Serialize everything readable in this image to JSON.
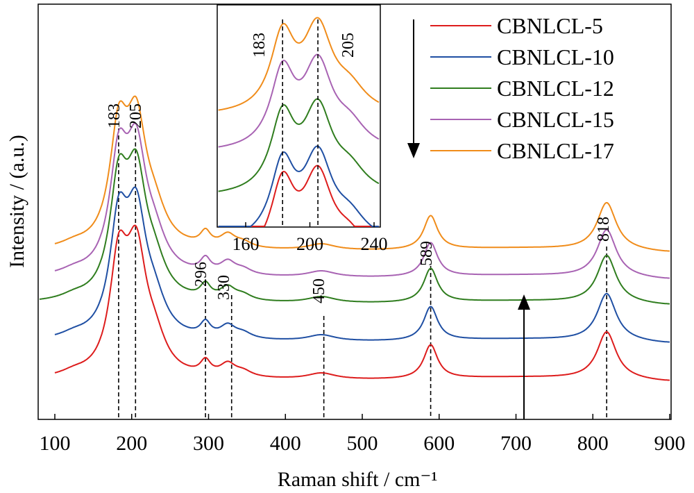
{
  "chart_data": {
    "type": "line",
    "xlabel": "Raman shift / cm⁻¹",
    "ylabel": "Intensity / (a.u.)",
    "xlim": [
      80,
      900
    ],
    "xticks": [
      "100",
      "200",
      "300",
      "400",
      "500",
      "600",
      "700",
      "800",
      "900"
    ],
    "y_ticks_shown": false,
    "legend_position": "top-right",
    "series": [
      {
        "name": "CBNLCL-5",
        "color": "#dd1c1c",
        "offset": 0,
        "scale": 1.0
      },
      {
        "name": "CBNLCL-10",
        "color": "#1f4fa3",
        "offset": 0.1,
        "scale": 1.0
      },
      {
        "name": "CBNLCL-12",
        "color": "#2f7d1e",
        "offset": 0.2,
        "scale": 1.0
      },
      {
        "name": "CBNLCL-15",
        "color": "#a863b3",
        "offset": 0.25,
        "scale": 1.0
      },
      {
        "name": "CBNLCL-17",
        "color": "#f08c1a",
        "offset": 0.31,
        "scale": 1.0
      }
    ],
    "peaks": [
      {
        "position": 183,
        "label": "183"
      },
      {
        "position": 205,
        "label": "205"
      },
      {
        "position": 296,
        "label": "296"
      },
      {
        "position": 330,
        "label": "330"
      },
      {
        "position": 450,
        "label": "450"
      },
      {
        "position": 589,
        "label": "589"
      },
      {
        "position": 818,
        "label": "818"
      }
    ],
    "arrow_down_note": "legend order arrow",
    "arrow_up_note": "increasing series",
    "inset": {
      "xlim": [
        145,
        240
      ],
      "xticks": [
        "160",
        "200",
        "240"
      ],
      "peak_labels": [
        "183",
        "205"
      ]
    }
  }
}
